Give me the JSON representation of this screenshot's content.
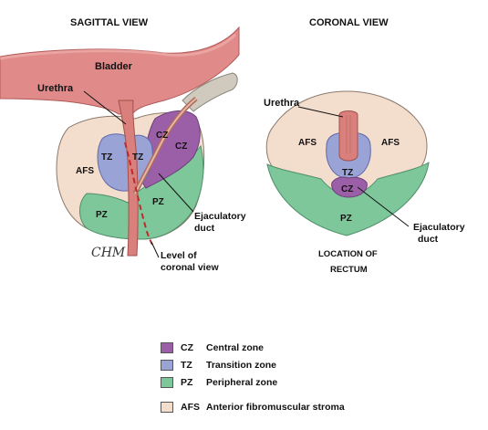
{
  "sagittal": {
    "title": "SAGITTAL VIEW",
    "bladder": "Bladder",
    "urethra": "Urethra",
    "afs": "AFS",
    "tz_left": "TZ",
    "tz_right": "TZ",
    "cz_upper": "CZ",
    "cz_lower": "CZ",
    "pz_left": "PZ",
    "pz_right": "PZ",
    "ejaculatory_duct_line1": "Ejaculatory",
    "ejaculatory_duct_line2": "duct",
    "level_line1": "Level of",
    "level_line2": "coronal view",
    "signature": "CHM"
  },
  "coronal": {
    "title": "CORONAL VIEW",
    "urethra": "Urethra",
    "afs_left": "AFS",
    "afs_right": "AFS",
    "tz": "TZ",
    "cz": "CZ",
    "pz": "PZ",
    "ejaculatory_duct_line1": "Ejaculatory",
    "ejaculatory_duct_line2": "duct",
    "location_line1": "LOCATION OF",
    "location_line2": "RECTUM"
  },
  "legend": {
    "items": [
      {
        "abbr": "CZ",
        "label": "Central zone",
        "color": "#9b5fa8"
      },
      {
        "abbr": "TZ",
        "label": "Transition zone",
        "color": "#9aa3d6"
      },
      {
        "abbr": "PZ",
        "label": "Peripheral zone",
        "color": "#7ec79a"
      },
      {
        "abbr": "AFS",
        "label": "Anterior fibromuscular stroma",
        "color": "#f3ddcd"
      }
    ]
  },
  "colors": {
    "afs": "#f3ddcd",
    "tz": "#9aa3d6",
    "cz": "#9b5fa8",
    "pz": "#7ec79a",
    "bladder": "#e08a8a",
    "urethra": "#d9807c",
    "seminal": "#cfcabd"
  }
}
